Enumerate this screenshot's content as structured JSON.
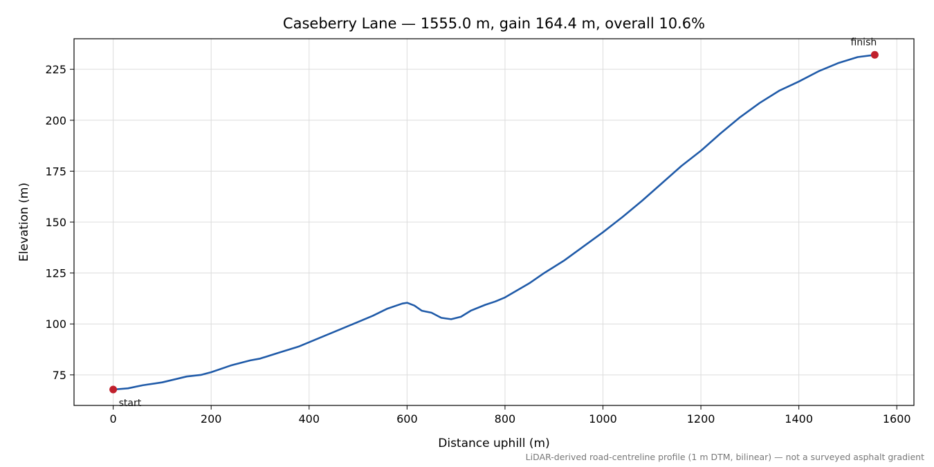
{
  "chart_data": {
    "type": "line",
    "title": "Caseberry Lane — 1555.0 m, gain 164.4 m, overall 10.6%",
    "xlabel": "Distance uphill (m)",
    "ylabel": "Elevation (m)",
    "xlim": [
      -80,
      1635
    ],
    "ylim": [
      60,
      240
    ],
    "xticks": [
      0,
      200,
      400,
      600,
      800,
      1000,
      1200,
      1400,
      1600
    ],
    "yticks": [
      75,
      100,
      125,
      150,
      175,
      200,
      225
    ],
    "grid": true,
    "series": [
      {
        "color": "#1f5aa8",
        "x": [
          0,
          30,
          60,
          100,
          150,
          180,
          200,
          240,
          280,
          300,
          340,
          380,
          420,
          460,
          500,
          530,
          560,
          590,
          600,
          615,
          630,
          650,
          670,
          690,
          710,
          730,
          760,
          780,
          800,
          850,
          880,
          920,
          960,
          1000,
          1040,
          1080,
          1120,
          1160,
          1200,
          1240,
          1280,
          1320,
          1360,
          1400,
          1440,
          1480,
          1520,
          1555
        ],
        "y": [
          67.8,
          68.4,
          69.9,
          71.3,
          74.2,
          75.0,
          76.3,
          79.6,
          82.1,
          83.0,
          86.0,
          89.0,
          93.0,
          97.0,
          101.0,
          104.0,
          107.5,
          110.0,
          110.4,
          109.0,
          106.5,
          105.5,
          103.0,
          102.3,
          103.5,
          106.5,
          109.4,
          111.0,
          113.0,
          120.0,
          125.0,
          131.0,
          138.0,
          145.0,
          152.5,
          160.5,
          169.0,
          177.5,
          185.0,
          193.5,
          201.5,
          208.5,
          214.5,
          219.0,
          224.0,
          228.0,
          231.0,
          232.1
        ]
      }
    ],
    "markers": [
      {
        "x": 0,
        "y": 67.8,
        "label": "start",
        "color": "#c0202c"
      },
      {
        "x": 1555,
        "y": 232.1,
        "label": "finish",
        "color": "#c0202c"
      }
    ],
    "footnote": "LiDAR-derived road-centreline profile (1 m DTM, bilinear) — not a surveyed asphalt gradient"
  }
}
